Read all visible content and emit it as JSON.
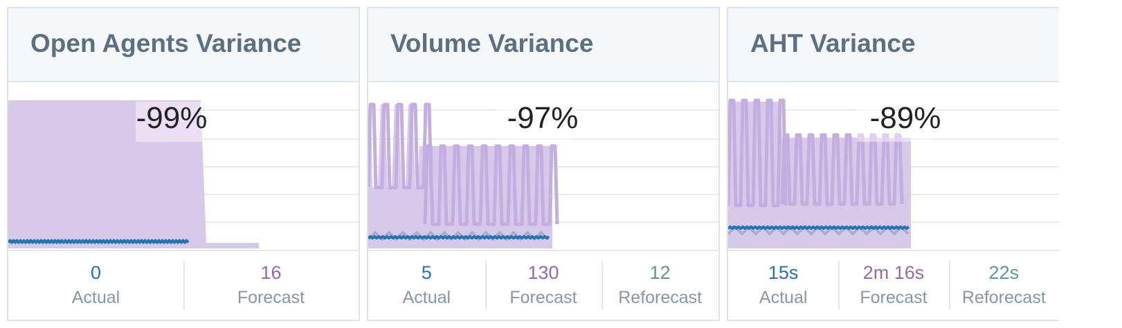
{
  "colors": {
    "actual": "#1d75b6",
    "forecast": "#8f6bb4",
    "reforecast": "#5a9b8e",
    "forecast_fill": "#d5c6e9",
    "grid": "#e6e9ee",
    "label": "#8a96a2",
    "title": "#5c7083"
  },
  "cards": [
    {
      "title": "Open Agents Variance",
      "variance": "-99%",
      "stats": [
        {
          "value": "0",
          "label": "Actual",
          "type": "actual"
        },
        {
          "value": "16",
          "label": "Forecast",
          "type": "forecast"
        }
      ]
    },
    {
      "title": "Volume Variance",
      "variance": "-97%",
      "stats": [
        {
          "value": "5",
          "label": "Actual",
          "type": "actual"
        },
        {
          "value": "130",
          "label": "Forecast",
          "type": "forecast"
        },
        {
          "value": "12",
          "label": "Reforecast",
          "type": "reforecast"
        }
      ]
    },
    {
      "title": "AHT Variance",
      "variance": "-89%",
      "stats": [
        {
          "value": "15s",
          "label": "Actual",
          "type": "actual"
        },
        {
          "value": "2m 16s",
          "label": "Forecast",
          "type": "forecast"
        },
        {
          "value": "22s",
          "label": "Reforecast",
          "type": "reforecast"
        }
      ]
    }
  ]
}
